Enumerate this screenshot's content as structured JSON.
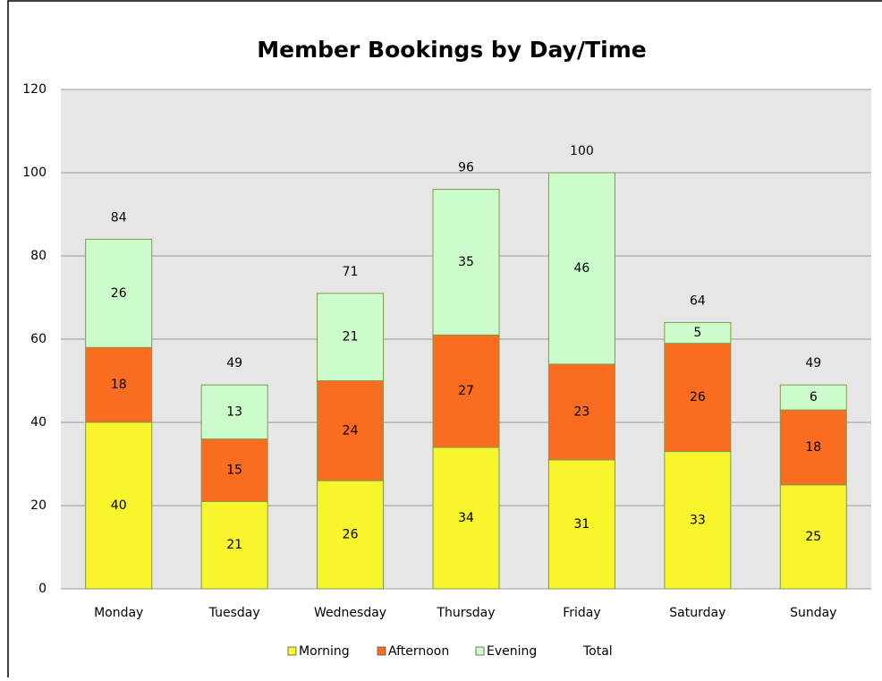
{
  "chart_data": {
    "type": "stacked_bar",
    "title": "Member Bookings by Day/Time",
    "categories": [
      "Monday",
      "Tuesday",
      "Wednesday",
      "Thursday",
      "Friday",
      "Saturday",
      "Sunday"
    ],
    "series": [
      {
        "name": "Morning",
        "color": "#f8f52c",
        "values": [
          40,
          21,
          26,
          34,
          31,
          33,
          25
        ]
      },
      {
        "name": "Afternoon",
        "color": "#fa6c20",
        "values": [
          18,
          15,
          24,
          27,
          23,
          26,
          18
        ]
      },
      {
        "name": "Evening",
        "color": "#ccfccc",
        "values": [
          26,
          13,
          21,
          35,
          46,
          5,
          6
        ]
      }
    ],
    "total": {
      "name": "Total",
      "values": [
        84,
        49,
        71,
        96,
        100,
        64,
        49
      ]
    },
    "ylim": [
      0,
      120
    ],
    "yticks": [
      0,
      20,
      40,
      60,
      80,
      100,
      120
    ],
    "grid": true,
    "legend": "bottom"
  }
}
